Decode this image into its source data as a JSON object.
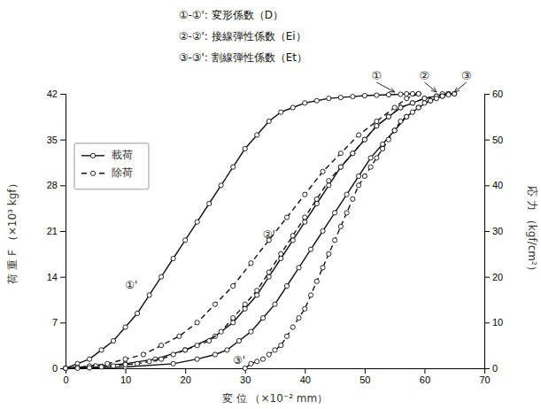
{
  "chart_data": {
    "type": "line",
    "xlabel": "変 位  （×10⁻² mm）",
    "ylabel": "応 力  （kgf/cm²）",
    "y2label": "荷 重 F （×10³ kgf）",
    "xlim": [
      0,
      70
    ],
    "xticks": [
      0,
      10,
      20,
      30,
      40,
      50,
      60,
      70
    ],
    "ylim": [
      0,
      60
    ],
    "yticks": [
      0,
      10,
      20,
      30,
      40,
      50,
      60
    ],
    "y2lim": [
      0,
      42
    ],
    "y2ticks": [
      0,
      7,
      14,
      21,
      28,
      35,
      42
    ],
    "grid": false,
    "legend": "upper left",
    "annotations": [
      "①-①': 変形係数（D）",
      "②-②': 接線弾性係数（Ei）",
      "③-③': 割線弾性係数（Et）",
      "①",
      "②",
      "③",
      "①'",
      "②'",
      "③'"
    ],
    "series": [
      {
        "name": "載荷",
        "color": "#111111",
        "line_style": "solid",
        "marker": "circle",
        "x": [
          0,
          2,
          4,
          6,
          8,
          10,
          12,
          14,
          16,
          18,
          20,
          22,
          24,
          26,
          28,
          30,
          32,
          34,
          36,
          38,
          40,
          42,
          44,
          46,
          48,
          50,
          52,
          54,
          56,
          57,
          58,
          59
        ],
        "values": [
          0,
          1,
          2,
          4,
          6,
          9,
          12,
          16,
          20,
          24,
          28,
          32,
          36,
          40,
          44,
          48,
          51,
          54,
          56,
          57,
          58,
          58.5,
          59,
          59.2,
          59.4,
          59.6,
          59.7,
          59.8,
          59.9,
          60,
          60,
          60
        ]
      },
      {
        "name": "載荷",
        "color": "#111111",
        "line_style": "solid",
        "marker": "circle",
        "x": [
          0,
          5,
          10,
          15,
          20,
          25,
          28,
          30,
          32,
          34,
          36,
          38,
          40,
          42,
          44,
          46,
          48,
          50,
          52,
          54,
          56,
          58,
          60,
          62,
          63,
          64
        ],
        "values": [
          0,
          0.5,
          1,
          2,
          4,
          7,
          10,
          13,
          16,
          20,
          24,
          28,
          32,
          36,
          40,
          44,
          47,
          50,
          53,
          55,
          57,
          58,
          59,
          59.5,
          60,
          60
        ]
      },
      {
        "name": "載荷",
        "color": "#111111",
        "line_style": "solid",
        "marker": "circle",
        "x": [
          0,
          10,
          18,
          22,
          25,
          27,
          29,
          31,
          33,
          35,
          37,
          39,
          41,
          43,
          45,
          47,
          49,
          51,
          53,
          55,
          57,
          59,
          61,
          63,
          64,
          65
        ],
        "values": [
          0,
          0.3,
          1,
          2,
          3,
          4,
          6,
          8,
          11,
          14,
          18,
          22,
          26,
          30,
          34,
          38,
          42,
          46,
          49,
          52,
          55,
          57,
          58.5,
          59.5,
          60,
          60
        ]
      },
      {
        "name": "除荷",
        "color": "#111111",
        "line_style": "dashed",
        "marker": "circle",
        "x": [
          59,
          57,
          55,
          52,
          49,
          46,
          43,
          40,
          37,
          34,
          31,
          28,
          25,
          22,
          19,
          16,
          13,
          10,
          7,
          4,
          2,
          0
        ],
        "values": [
          60,
          59,
          57,
          54,
          51,
          47,
          43,
          38,
          33,
          28,
          23,
          18,
          14,
          10,
          7,
          5,
          3,
          2,
          1,
          0.5,
          0.2,
          0
        ]
      },
      {
        "name": "除荷",
        "color": "#111111",
        "line_style": "dashed",
        "marker": "circle",
        "x": [
          64,
          62,
          60,
          58,
          56,
          54,
          52,
          50,
          48,
          46,
          44,
          42,
          40,
          38,
          36,
          34,
          32,
          30,
          28,
          26,
          24,
          22,
          20,
          18,
          16,
          14,
          12,
          10,
          8,
          6,
          4,
          2
        ],
        "values": [
          60,
          59.5,
          59,
          58,
          57,
          55,
          53,
          50,
          47,
          44,
          41,
          37,
          33,
          29,
          25,
          21,
          17,
          14,
          11,
          8,
          6,
          5,
          4,
          3,
          2,
          1.5,
          1,
          0.8,
          0.5,
          0.3,
          0.1,
          0
        ]
      },
      {
        "name": "除荷",
        "color": "#111111",
        "line_style": "dashed",
        "marker": "circle",
        "x": [
          65,
          64,
          63,
          62,
          61,
          60,
          59,
          58,
          57,
          56,
          55,
          54,
          53,
          52,
          51,
          50,
          49,
          48,
          47,
          46,
          45,
          44,
          43,
          42,
          41,
          40,
          39,
          38,
          37,
          36,
          35,
          34,
          33,
          32,
          31,
          30
        ],
        "values": [
          60,
          59.8,
          59.5,
          59,
          58.5,
          58,
          57,
          56,
          55,
          54,
          52,
          50,
          48,
          46,
          44,
          42,
          40,
          37,
          34,
          31,
          28,
          25,
          22,
          19,
          16,
          13,
          11,
          9,
          7,
          5,
          4,
          3,
          2,
          1.5,
          1,
          0
        ]
      }
    ]
  }
}
